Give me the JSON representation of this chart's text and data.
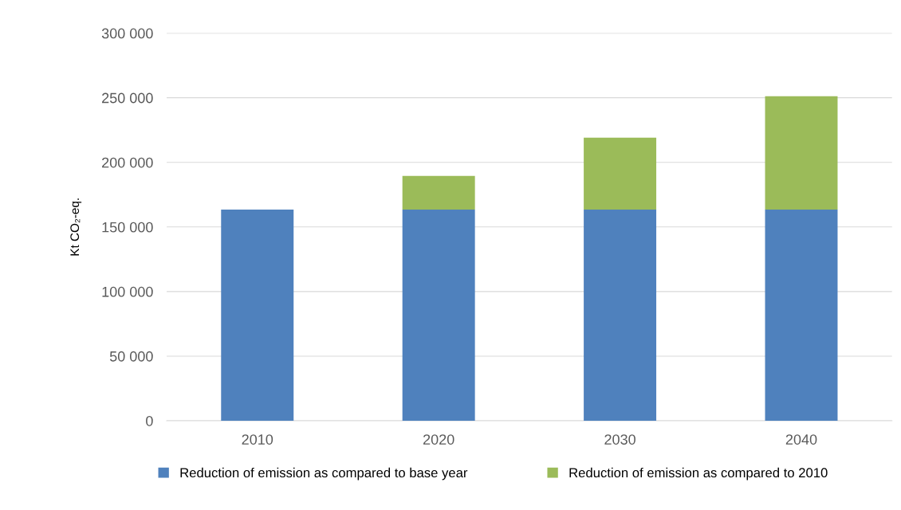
{
  "chart_data": {
    "type": "bar",
    "stacked": true,
    "ylabel": "Kt CO₂-eq.",
    "categories": [
      "2010",
      "2020",
      "2030",
      "2040"
    ],
    "series": [
      {
        "name": "Reduction of emission as compared to base year",
        "color": "#4f81bd",
        "values": [
          163500,
          163500,
          163500,
          163500
        ]
      },
      {
        "name": "Reduction of emission as compared to 2010",
        "color": "#9bbb59",
        "values": [
          null,
          26000,
          55600,
          87700
        ]
      }
    ],
    "ylim": [
      0,
      300000
    ],
    "yticks": [
      0,
      {
        "value": 50000,
        "label": "50 000"
      },
      {
        "value": 100000,
        "label": "100 000"
      },
      {
        "value": 150000,
        "label": "150 000"
      },
      {
        "value": 200000,
        "label": "200 000"
      },
      {
        "value": 250000,
        "label": "250 000"
      },
      {
        "value": 300000,
        "label": "300 000"
      }
    ],
    "grid": "y",
    "legend": "bottom"
  }
}
